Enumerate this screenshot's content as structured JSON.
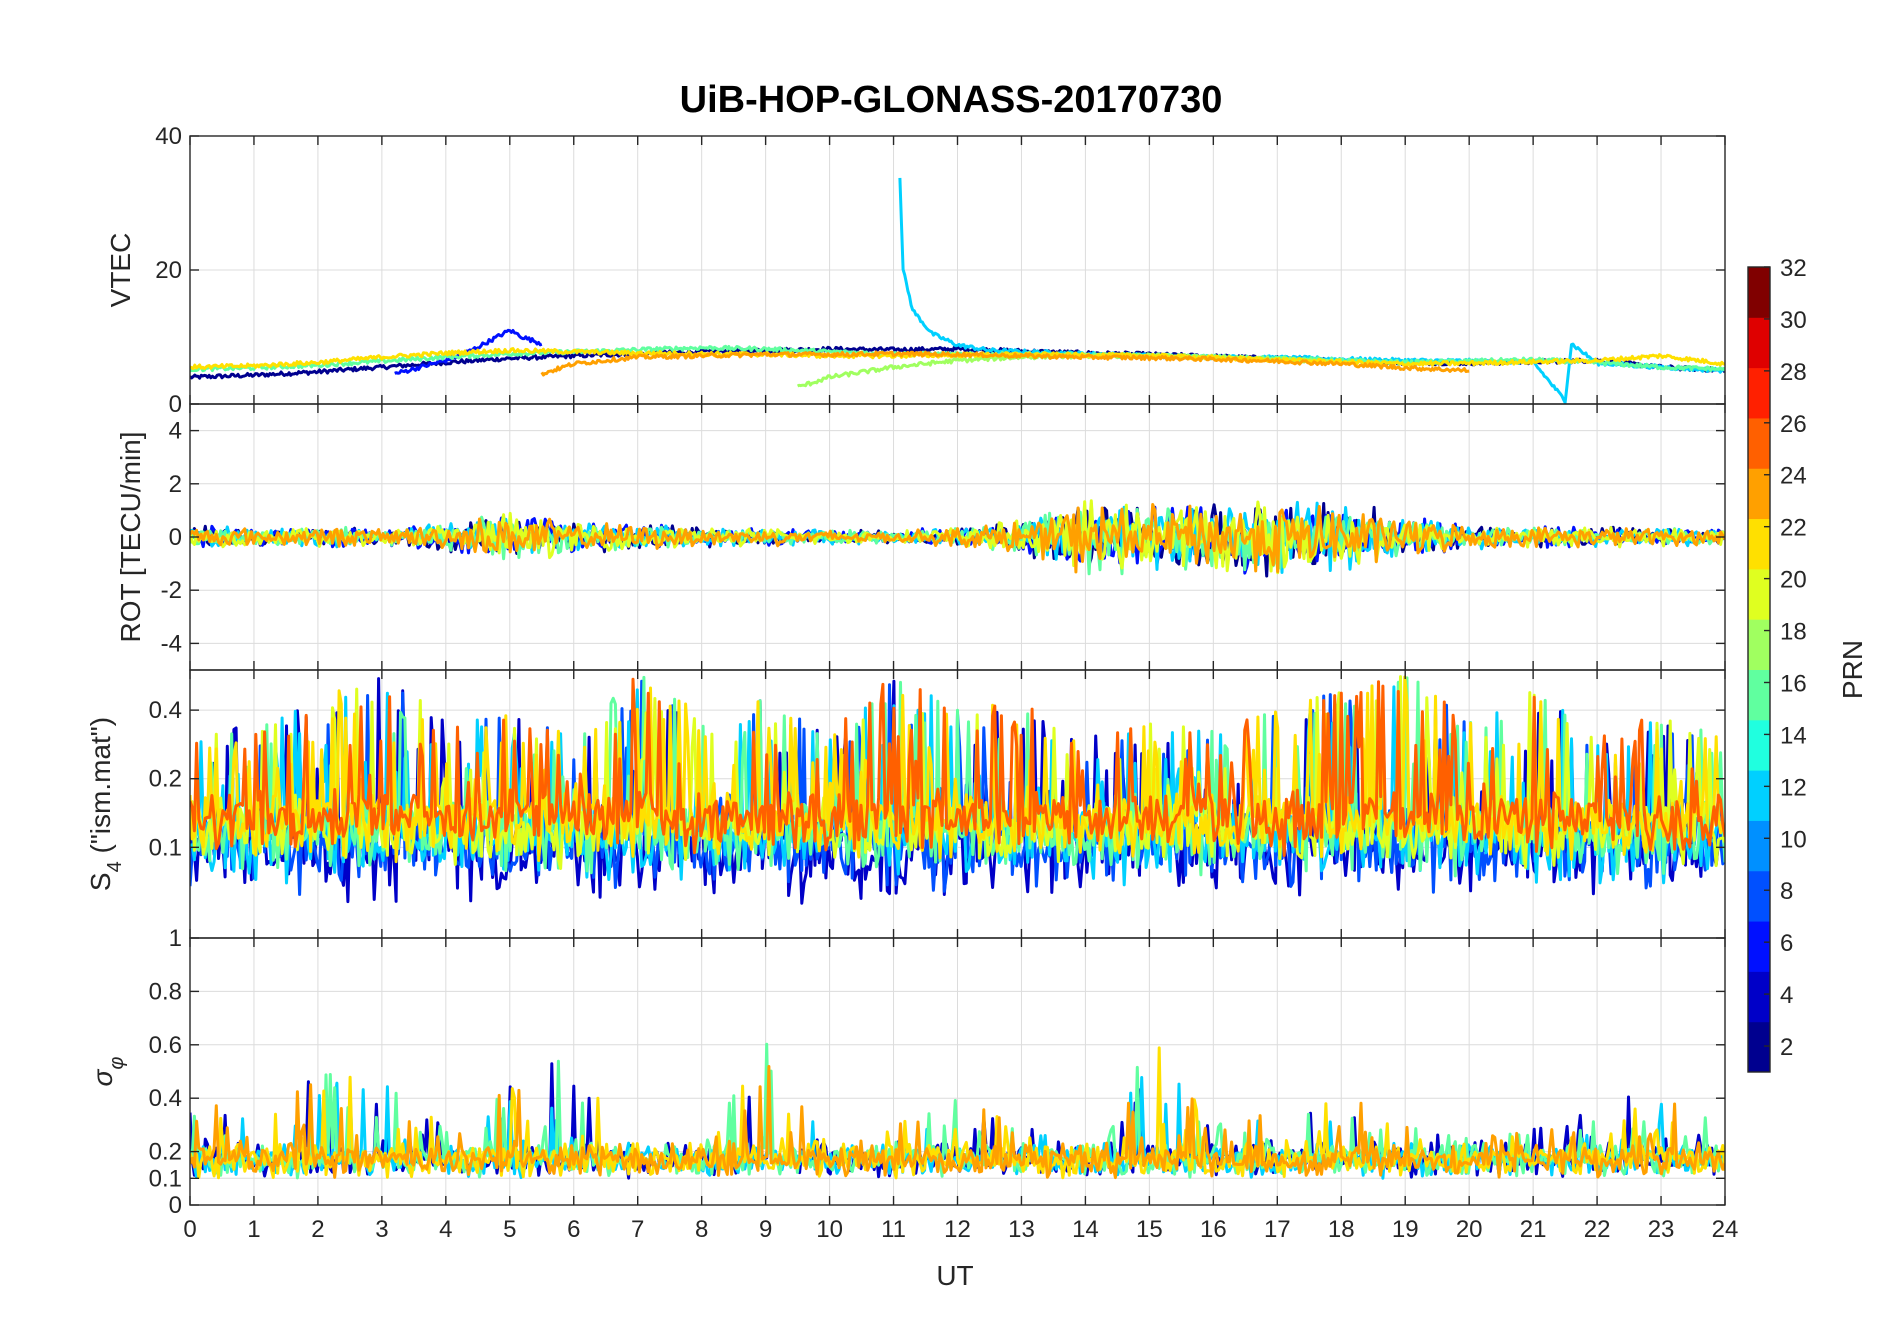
{
  "chart_data": {
    "type": "line",
    "title": "UiB-HOP-GLONASS-20170730",
    "xlabel": "UT",
    "xlim": [
      0,
      24
    ],
    "x_ticks": [
      "0",
      "1",
      "2",
      "3",
      "4",
      "5",
      "6",
      "7",
      "8",
      "9",
      "10",
      "11",
      "12",
      "13",
      "14",
      "15",
      "16",
      "17",
      "18",
      "19",
      "20",
      "21",
      "22",
      "23",
      "24"
    ],
    "grid": true,
    "colorbar": {
      "label": "PRN",
      "colormap": "jet",
      "range": [
        1,
        32
      ],
      "ticks": [
        "2",
        "4",
        "6",
        "8",
        "10",
        "12",
        "14",
        "16",
        "18",
        "20",
        "22",
        "24",
        "26",
        "28",
        "30",
        "32"
      ],
      "placement": "right",
      "colors": [
        "#00008f",
        "#0000c8",
        "#0010ff",
        "#0050ff",
        "#0090ff",
        "#00d0ff",
        "#20ffdf",
        "#60ff9f",
        "#a0ff60",
        "#dfff20",
        "#ffe000",
        "#ffa000",
        "#ff6000",
        "#ff2000",
        "#df0000",
        "#800000"
      ]
    },
    "panels": [
      {
        "name": "vtec",
        "ylabel": "VTEC",
        "ylim": [
          0,
          40
        ],
        "y_ticks": [
          "0",
          "20",
          "40"
        ],
        "y_tick_values": [
          0,
          20,
          40
        ],
        "series": [
          {
            "color": "#00008f",
            "x": [
              0,
              1,
              2,
              3,
              4,
              5,
              6,
              7,
              8,
              9,
              10,
              11,
              12,
              13,
              14,
              15,
              16,
              17,
              18,
              19,
              20,
              21,
              22,
              23,
              24
            ],
            "y": [
              4,
              4.3,
              4.8,
              5.5,
              6.2,
              6.8,
              7.2,
              7.5,
              7.8,
              8,
              8.2,
              8.1,
              8.2,
              7.9,
              7.6,
              7.4,
              7.1,
              6.8,
              6.5,
              6.2,
              6.1,
              6.3,
              6.5,
              5.5,
              5
            ]
          },
          {
            "color": "#0010ff",
            "x": [
              3.2,
              3.6,
              4,
              4.4,
              4.8,
              5,
              5.2,
              5.5
            ],
            "y": [
              4.5,
              5.5,
              6.5,
              8,
              10,
              11,
              10,
              9
            ]
          },
          {
            "color": "#00d0ff",
            "x": [
              11.1,
              11.15,
              11.3,
              11.6,
              12,
              12.5,
              13,
              14,
              15,
              16,
              17,
              18,
              19,
              20,
              21,
              21.5,
              21.6,
              22,
              23,
              24
            ],
            "y": [
              34,
              20,
              14,
              10.5,
              8.8,
              8,
              7.8,
              7.5,
              7.2,
              7,
              6.9,
              6.7,
              6.5,
              6.4,
              6.3,
              0.5,
              9,
              6.1,
              5.5,
              5
            ]
          },
          {
            "color": "#60ff9f",
            "x": [
              0,
              1,
              2,
              3,
              4,
              5,
              6,
              7,
              8,
              9,
              10,
              11,
              12,
              13,
              14,
              15,
              16,
              17,
              18,
              19,
              20,
              21,
              22,
              23,
              24
            ],
            "y": [
              5.2,
              5.4,
              5.8,
              6.4,
              7,
              7.5,
              7.8,
              8.1,
              8.4,
              8.2,
              7.8,
              7.5,
              7.4,
              7.4,
              7.3,
              7.2,
              7,
              6.8,
              6.5,
              6.2,
              6.4,
              6.6,
              6.2,
              5.5,
              5.2
            ]
          },
          {
            "color": "#a0ff60",
            "x": [
              9.5,
              10,
              11,
              12,
              13,
              14,
              15,
              16,
              17,
              18
            ],
            "y": [
              2.5,
              4,
              5.5,
              6.5,
              7,
              7.2,
              7.2,
              7,
              6.7,
              6.3
            ]
          },
          {
            "color": "#ffe000",
            "x": [
              0,
              1,
              2,
              3,
              4,
              5,
              6,
              7,
              8,
              9,
              10,
              11,
              12,
              13,
              14,
              15,
              16,
              17,
              18,
              19,
              20,
              21,
              22,
              23,
              24
            ],
            "y": [
              5.5,
              5.7,
              6.2,
              7,
              7.6,
              8,
              7.8,
              7.6,
              7.5,
              7.4,
              7.2,
              7.2,
              7.3,
              7.4,
              7.3,
              7.2,
              6.9,
              6.6,
              6.3,
              6,
              6.1,
              6.3,
              6.5,
              7.2,
              6
            ]
          },
          {
            "color": "#ffa000",
            "x": [
              5.5,
              6,
              7,
              8,
              9,
              10,
              11,
              12,
              13,
              14,
              15,
              16,
              17,
              18,
              19,
              20
            ],
            "y": [
              4.5,
              6,
              7,
              7.2,
              7.4,
              7.4,
              7.5,
              7.4,
              7.2,
              7,
              6.9,
              6.7,
              6.4,
              6,
              5.4,
              5
            ]
          }
        ]
      },
      {
        "name": "rot",
        "ylabel": "ROT [TECU/min]",
        "ylim": [
          -5,
          5
        ],
        "y_ticks": [
          "-4",
          "-2",
          "0",
          "2",
          "4"
        ],
        "y_tick_values": [
          -4,
          -2,
          0,
          2,
          4
        ],
        "activity_x": [
          0,
          1,
          2,
          3,
          4,
          5,
          6,
          7,
          8,
          9,
          10,
          11,
          12,
          13,
          14,
          15,
          16,
          17,
          18,
          19,
          20,
          21,
          22,
          23,
          24
        ],
        "activity_amplitude": [
          0.4,
          0.3,
          0.35,
          0.3,
          0.45,
          0.9,
          0.5,
          0.45,
          0.35,
          0.3,
          0.25,
          0.2,
          0.35,
          0.6,
          1.3,
          1.1,
          1.2,
          1.3,
          1.2,
          0.7,
          0.4,
          0.35,
          0.35,
          0.3,
          0.3
        ],
        "series_colors": [
          "#00008f",
          "#0010ff",
          "#00d0ff",
          "#60ff9f",
          "#dfff20",
          "#ffa000"
        ]
      },
      {
        "name": "s4",
        "ylabel": "S4 (\"ism.mat\")",
        "ylim": [
          0.04,
          0.6
        ],
        "y_scale": "log",
        "y_ticks": [
          "0.1",
          "0.2",
          "0.4"
        ],
        "y_tick_values": [
          0.1,
          0.2,
          0.4
        ],
        "activity_x": [
          0,
          1,
          2,
          3,
          4,
          5,
          6,
          7,
          8,
          9,
          10,
          11,
          12,
          13,
          14,
          15,
          16,
          17,
          18,
          19,
          20,
          21,
          22,
          23,
          24
        ],
        "activity_peak": [
          0.3,
          0.35,
          0.45,
          0.6,
          0.35,
          0.4,
          0.3,
          0.58,
          0.4,
          0.45,
          0.3,
          0.58,
          0.4,
          0.45,
          0.3,
          0.35,
          0.35,
          0.4,
          0.5,
          0.58,
          0.35,
          0.5,
          0.3,
          0.4,
          0.3
        ],
        "series_colors": [
          "#0000c8",
          "#0050ff",
          "#00d0ff",
          "#60ff9f",
          "#dfff20",
          "#ffe000",
          "#ff6000"
        ]
      },
      {
        "name": "sigma-phi",
        "ylabel": "σφ",
        "ylim": [
          0,
          1
        ],
        "y_ticks": [
          "0",
          "0.1",
          "0.2",
          "0.4",
          "0.6",
          "0.8",
          "1"
        ],
        "y_tick_values": [
          0,
          0.1,
          0.2,
          0.4,
          0.6,
          0.8,
          1
        ],
        "activity_x": [
          0,
          1,
          2,
          3,
          4,
          5,
          6,
          7,
          8,
          9,
          10,
          11,
          12,
          13,
          14,
          15,
          16,
          17,
          18,
          19,
          20,
          21,
          22,
          23,
          24
        ],
        "activity_peak": [
          0.45,
          0.3,
          0.5,
          0.5,
          0.3,
          0.45,
          0.6,
          0.2,
          0.2,
          0.7,
          0.2,
          0.3,
          0.4,
          0.3,
          0.2,
          0.65,
          0.3,
          0.35,
          0.45,
          0.3,
          0.25,
          0.3,
          0.35,
          0.5,
          0.3
        ],
        "series_colors": [
          "#0000c8",
          "#00d0ff",
          "#60ff9f",
          "#ffe000",
          "#ffa000"
        ]
      }
    ]
  }
}
